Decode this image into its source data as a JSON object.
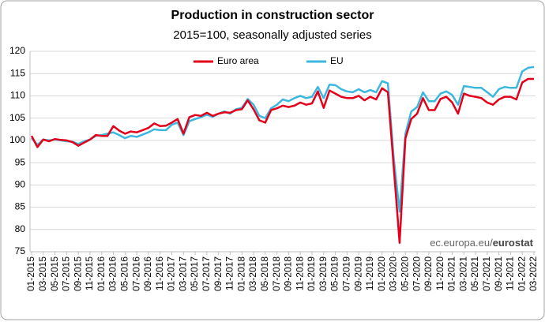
{
  "chart_data": {
    "type": "line",
    "title": "Production in construction sector",
    "subtitle": "2015=100, seasonally adjusted series",
    "source": "ec.europa.eu/",
    "source_brand": "eurostat",
    "legend": "top",
    "grid": true,
    "ylim": [
      75,
      120
    ],
    "yticks": [
      75,
      80,
      85,
      90,
      95,
      100,
      105,
      110,
      115,
      120
    ],
    "categories": [
      "01-2015",
      null,
      "03-2015",
      null,
      "05-2015",
      null,
      "07-2015",
      null,
      "09-2015",
      null,
      "11-2015",
      null,
      "01-2016",
      null,
      "03-2016",
      null,
      "05-2016",
      null,
      "07-2016",
      null,
      "09-2016",
      null,
      "11-2016",
      null,
      "01-2017",
      null,
      "03-2017",
      null,
      "05-2017",
      null,
      "07-2017",
      null,
      "09-2017",
      null,
      "11-2017",
      null,
      "01-2018",
      null,
      "03-2018",
      null,
      "05-2018",
      null,
      "07-2018",
      null,
      "09-2018",
      null,
      "11-2018",
      null,
      "01-2019",
      null,
      "03-2019",
      null,
      "05-2019",
      null,
      "07-2019",
      null,
      "09-2019",
      null,
      "11-2019",
      null,
      "01-2020",
      null,
      "03-2020",
      null,
      "05-2020",
      null,
      "07-2020",
      null,
      "09-2020",
      null,
      "11-2020",
      null,
      "01-2021",
      null,
      "03-2021",
      null,
      "05-2021",
      null,
      "07-2021",
      null,
      "09-2021",
      null,
      "11-2021",
      null,
      "01-2022",
      null,
      "03-2022"
    ],
    "series": [
      {
        "name": "Euro area",
        "color": "#e2001a",
        "values": [
          101,
          98.5,
          100.2,
          99.8,
          100.3,
          100.1,
          100,
          99.6,
          98.8,
          99.5,
          100.2,
          101.2,
          101,
          101,
          103.2,
          102.2,
          101.5,
          102,
          101.8,
          102.3,
          102.8,
          103.8,
          103.2,
          103.3,
          104,
          104.8,
          101.5,
          105.2,
          105.7,
          105.5,
          106.2,
          105.5,
          106,
          106.3,
          106.2,
          106.8,
          107,
          109,
          107,
          104.5,
          104,
          106.8,
          107.2,
          107.8,
          107.5,
          107.8,
          108.5,
          108,
          108.3,
          111,
          107.3,
          111.2,
          110.5,
          109.8,
          109.5,
          109.5,
          110,
          109,
          109.8,
          109.2,
          111.7,
          110.8,
          94,
          77,
          100.5,
          104.8,
          106,
          109.5,
          106.8,
          106.8,
          109.3,
          109.8,
          108.5,
          106,
          110.5,
          110,
          109.8,
          109.5,
          108.5,
          108,
          109.2,
          109.8,
          109.8,
          109.2,
          113,
          113.8,
          113.8
        ]
      },
      {
        "name": "EU",
        "color": "#3cb7e0",
        "values": [
          100.5,
          99,
          100.2,
          100,
          100.2,
          100,
          99.8,
          99.7,
          99.2,
          99.8,
          100.2,
          101,
          101.2,
          101.5,
          101.8,
          101.2,
          100.5,
          101,
          100.8,
          101.3,
          101.8,
          102.5,
          102.3,
          102.3,
          103.5,
          104,
          101.2,
          104.3,
          104.8,
          105.2,
          105.8,
          105.3,
          106,
          106.5,
          106,
          107,
          107.3,
          109.3,
          108,
          105.5,
          105,
          107.2,
          108,
          109.2,
          108.8,
          109.5,
          110,
          109.5,
          109.8,
          112,
          109.5,
          112.5,
          112.4,
          111.5,
          111,
          110.8,
          111.5,
          110.8,
          111.3,
          110.8,
          113.3,
          112.8,
          96,
          84,
          101.5,
          106.5,
          107.5,
          110.8,
          108.8,
          108.8,
          110.5,
          111,
          110.2,
          108,
          112.2,
          112,
          111.8,
          111.8,
          110.8,
          109.8,
          111.5,
          112,
          111.8,
          111.8,
          115.5,
          116.3,
          116.5
        ]
      }
    ]
  }
}
